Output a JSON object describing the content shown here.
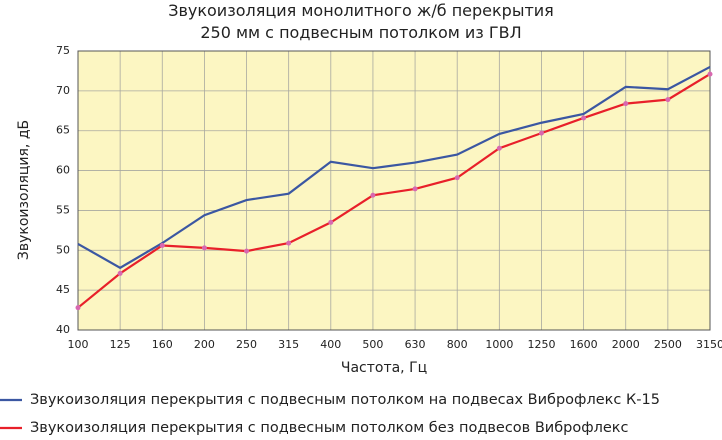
{
  "chart_data": {
    "type": "line",
    "title": "Звукоизоляция монолитного ж/б перекрытия 250 мм с подвесным потолком из ГВЛ",
    "x_label": "Частота, Гц",
    "y_label": "Звукоизоляция, дБ",
    "categories": [
      "100",
      "125",
      "160",
      "200",
      "250",
      "315",
      "400",
      "500",
      "630",
      "800",
      "1000",
      "1250",
      "1600",
      "2000",
      "2500",
      "3150"
    ],
    "series": [
      {
        "name": "Звукоизоляция перекрытия с подвесным потолком на подвесах Виброфлекс К-15",
        "color": "#3b57a2",
        "values": [
          50.8,
          47.8,
          50.9,
          54.4,
          56.3,
          57.1,
          61.1,
          60.3,
          61.0,
          62.0,
          64.6,
          66.0,
          67.1,
          70.5,
          70.2,
          73.0
        ]
      },
      {
        "name": "Звукоизоляция перекрытия с подвесным потолком без подвесов Виброфлекс",
        "color": "#e8202a",
        "marker_color": "#d868b0",
        "values": [
          42.8,
          47.1,
          50.6,
          50.3,
          49.9,
          50.9,
          53.5,
          56.9,
          57.7,
          59.1,
          62.8,
          64.7,
          66.6,
          68.4,
          68.9,
          72.1
        ]
      }
    ],
    "ylim": [
      40,
      75
    ],
    "yticks": [
      40,
      45,
      50,
      55,
      60,
      65,
      70,
      75
    ],
    "grid": true,
    "background": "#fcf6c2"
  }
}
